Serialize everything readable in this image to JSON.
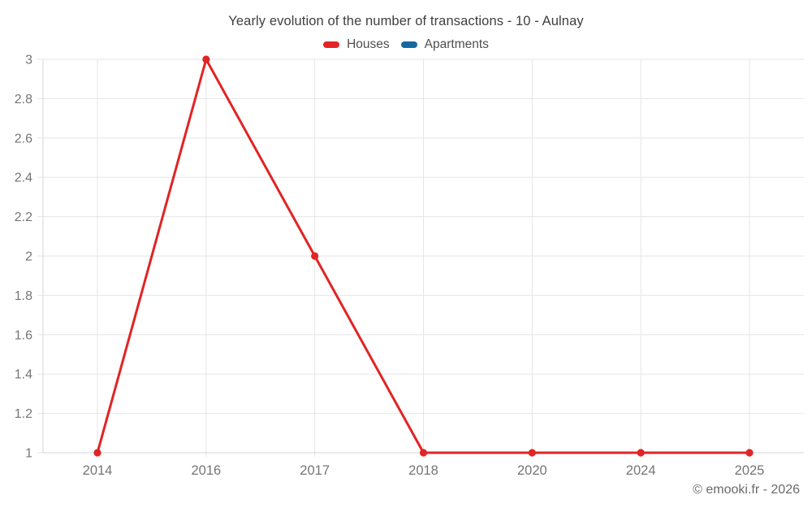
{
  "title": "Yearly evolution of the number of transactions - 10 - Aulnay",
  "copyright": "© emooki.fr - 2026",
  "colors": {
    "houses": "#e12424",
    "apartments": "#1469a0",
    "grid": "#e6e6e6",
    "axis": "#d6d6d6",
    "tick_label": "#757575",
    "title_text": "#404040"
  },
  "chart_data": {
    "type": "line",
    "title": "Yearly evolution of the number of transactions - 10 - Aulnay",
    "categories": [
      "2014",
      "2016",
      "2017",
      "2018",
      "2020",
      "2024",
      "2025"
    ],
    "series": [
      {
        "name": "Houses",
        "color": "#e12424",
        "values": [
          1,
          3,
          2,
          1,
          1,
          1,
          1
        ]
      },
      {
        "name": "Apartments",
        "color": "#1469a0",
        "values": []
      }
    ],
    "xlabel": "",
    "ylabel": "",
    "ylim": [
      1,
      3
    ],
    "ytick_step": 0.2,
    "ytick_labels": [
      "1",
      "1.2",
      "1.4",
      "1.6",
      "1.8",
      "2",
      "2.2",
      "2.4",
      "2.6",
      "2.8",
      "3"
    ],
    "grid": true,
    "legend_position": "top",
    "marker_radius": 4.6,
    "line_width": 3
  }
}
